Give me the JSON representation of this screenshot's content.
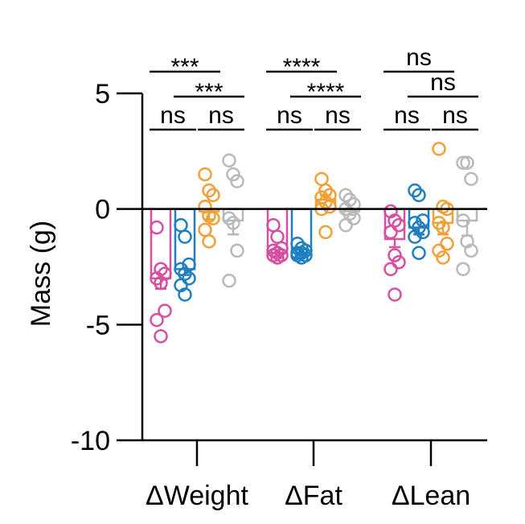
{
  "chart_data": {
    "type": "bar",
    "title": "",
    "xlabel": "",
    "ylabel": "Mass (g)",
    "ylim": [
      -10,
      5
    ],
    "yticks": [
      {
        "value": 5,
        "label": "5"
      },
      {
        "value": 0,
        "label": "0"
      },
      {
        "value": -5,
        "label": "-5"
      },
      {
        "value": -10,
        "label": "-10"
      }
    ],
    "categories": [
      "ΔWeight",
      "ΔFat",
      "ΔLean"
    ],
    "series": [
      {
        "color": "#d64fa1",
        "means": [
          -3.0,
          -1.9,
          -1.3
        ],
        "sem": [
          0.45,
          0.15,
          0.35
        ],
        "points": [
          [
            -0.8,
            -2.6,
            -2.8,
            -3.0,
            -3.2,
            -4.4,
            -4.8,
            -5.5
          ],
          [
            -0.7,
            -1.2,
            -1.7,
            -1.8,
            -1.9,
            -2.0,
            -2.0,
            -2.1
          ],
          [
            -0.1,
            -0.5,
            -0.7,
            -1.0,
            -2.0,
            -2.3,
            -2.6,
            -3.7
          ]
        ]
      },
      {
        "color": "#1f7fc0",
        "means": [
          -2.6,
          -1.9,
          -0.8
        ],
        "sem": [
          0.25,
          0.1,
          0.3
        ],
        "points": [
          [
            -0.7,
            -1.2,
            -2.4,
            -2.6,
            -2.8,
            -3.0,
            -3.3,
            -3.7
          ],
          [
            -1.5,
            -1.7,
            -1.8,
            -1.9,
            -1.9,
            -2.0,
            -2.0,
            -2.1
          ],
          [
            0.8,
            0.6,
            -0.5,
            -0.6,
            -0.8,
            -1.0,
            -1.2,
            -1.9
          ]
        ]
      },
      {
        "color": "#f2a035",
        "means": [
          -0.1,
          0.4,
          -0.6
        ],
        "sem": [
          0.35,
          0.2,
          0.5
        ],
        "points": [
          [
            1.5,
            0.8,
            0.6,
            0.1,
            -0.3,
            -0.4,
            -0.9,
            -1.4
          ],
          [
            1.3,
            0.8,
            0.6,
            0.5,
            0.3,
            0.1,
            0.0,
            -1.0
          ],
          [
            2.6,
            0.1,
            0.0,
            -0.6,
            -0.8,
            -1.5,
            -1.8,
            -2.1
          ]
        ]
      },
      {
        "color": "#b9b9bb",
        "means": [
          -0.5,
          -0.1,
          -0.5
        ],
        "sem": [
          0.6,
          0.15,
          0.65
        ],
        "points": [
          [
            2.1,
            1.5,
            1.2,
            -0.4,
            -0.6,
            -1.8,
            -3.1
          ],
          [
            0.6,
            0.4,
            0.2,
            0.0,
            -0.2,
            -0.4,
            -0.7
          ],
          [
            2.0,
            2.0,
            1.3,
            -0.5,
            -1.4,
            -1.8,
            -2.6
          ]
        ]
      }
    ],
    "significance": [
      {
        "group": 0,
        "from": 0,
        "to": 1,
        "label": "ns",
        "level": 0
      },
      {
        "group": 0,
        "from": 2,
        "to": 3,
        "label": "ns",
        "level": 0
      },
      {
        "group": 0,
        "from": 1,
        "to": 3,
        "label": "***",
        "level": 1
      },
      {
        "group": 0,
        "from": 0,
        "to": 2,
        "label": "***",
        "level": 2
      },
      {
        "group": 1,
        "from": 0,
        "to": 1,
        "label": "ns",
        "level": 0
      },
      {
        "group": 1,
        "from": 2,
        "to": 3,
        "label": "ns",
        "level": 0
      },
      {
        "group": 1,
        "from": 1,
        "to": 3,
        "label": "****",
        "level": 1
      },
      {
        "group": 1,
        "from": 0,
        "to": 2,
        "label": "****",
        "level": 2
      },
      {
        "group": 2,
        "from": 0,
        "to": 1,
        "label": "ns",
        "level": 0
      },
      {
        "group": 2,
        "from": 2,
        "to": 3,
        "label": "ns",
        "level": 0
      },
      {
        "group": 2,
        "from": 1,
        "to": 3,
        "label": "ns",
        "level": 1
      },
      {
        "group": 2,
        "from": 0,
        "to": 2,
        "label": "ns",
        "level": 2
      }
    ]
  }
}
